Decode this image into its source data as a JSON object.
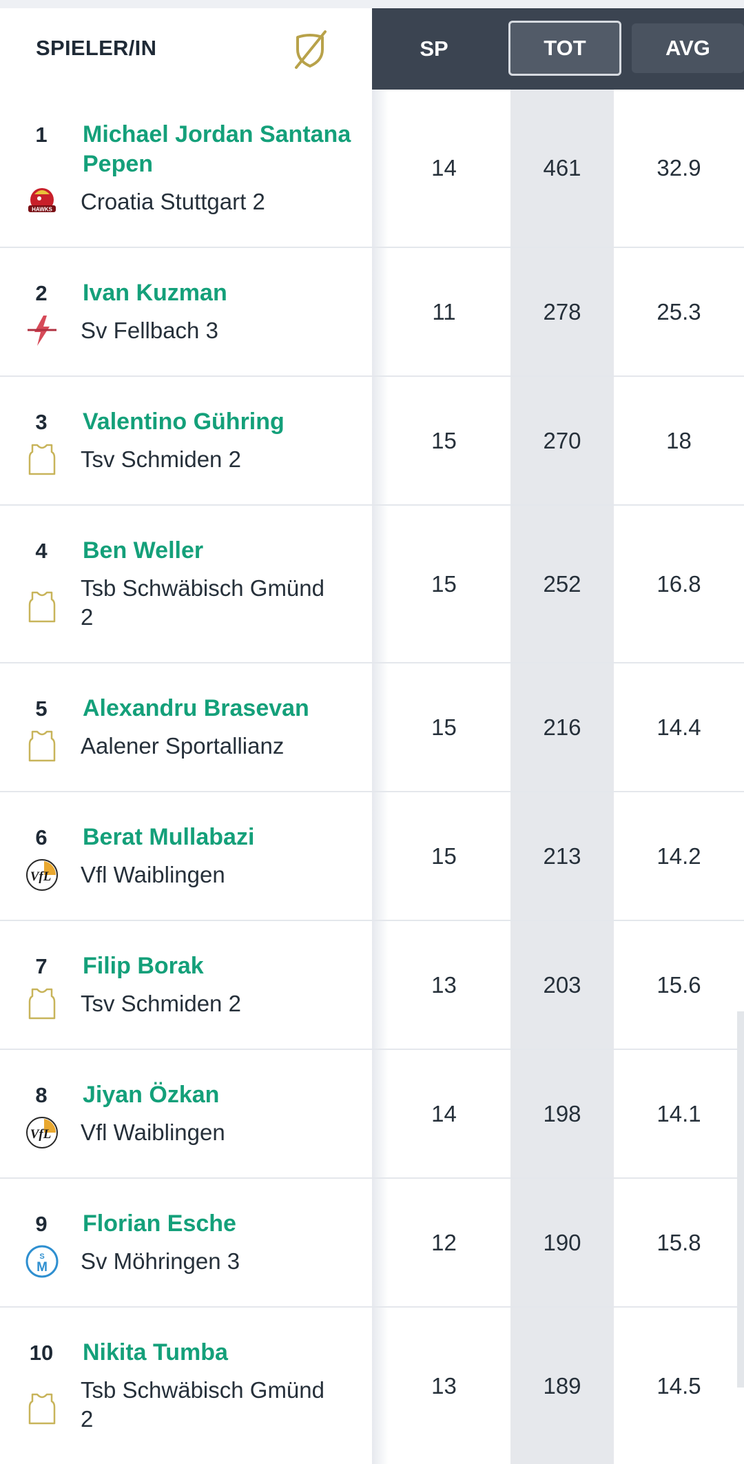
{
  "header": {
    "player_label": "SPIELER/IN",
    "filter_icon": "slashed-shield-icon",
    "columns": {
      "sp": "SP",
      "tot": "TOT",
      "avg": "AVG"
    },
    "active_column": "TOT"
  },
  "colors": {
    "player_name": "#14a07a",
    "header_dark": "#3b4451",
    "tot_column_bg": "#e6e8ec"
  },
  "rows": [
    {
      "rank": "1",
      "name_lines": [
        "Michael Jordan Santana",
        "Pepen"
      ],
      "team_lines": [
        "Croatia Stuttgart 2"
      ],
      "logo": "hawks-logo-icon",
      "sp": "14",
      "tot": "461",
      "avg": "32.9"
    },
    {
      "rank": "2",
      "name_lines": [
        "Ivan Kuzman"
      ],
      "team_lines": [
        "Sv Fellbach 3"
      ],
      "logo": "lightning-logo-icon",
      "sp": "11",
      "tot": "278",
      "avg": "25.3"
    },
    {
      "rank": "3",
      "name_lines": [
        "Valentino Gühring"
      ],
      "team_lines": [
        "Tsv Schmiden 2"
      ],
      "logo": "jersey-icon",
      "sp": "15",
      "tot": "270",
      "avg": "18"
    },
    {
      "rank": "4",
      "name_lines": [
        "Ben Weller"
      ],
      "team_lines": [
        "Tsb Schwäbisch Gmünd",
        "2"
      ],
      "logo": "jersey-icon",
      "sp": "15",
      "tot": "252",
      "avg": "16.8"
    },
    {
      "rank": "5",
      "name_lines": [
        "Alexandru Brasevan"
      ],
      "team_lines": [
        "Aalener Sportallianz"
      ],
      "logo": "jersey-icon",
      "sp": "15",
      "tot": "216",
      "avg": "14.4"
    },
    {
      "rank": "6",
      "name_lines": [
        "Berat Mullabazi"
      ],
      "team_lines": [
        "Vfl Waiblingen"
      ],
      "logo": "vfl-logo-icon",
      "sp": "15",
      "tot": "213",
      "avg": "14.2"
    },
    {
      "rank": "7",
      "name_lines": [
        "Filip Borak"
      ],
      "team_lines": [
        "Tsv Schmiden 2"
      ],
      "logo": "jersey-icon",
      "sp": "13",
      "tot": "203",
      "avg": "15.6"
    },
    {
      "rank": "8",
      "name_lines": [
        "Jiyan Özkan"
      ],
      "team_lines": [
        "Vfl Waiblingen"
      ],
      "logo": "vfl-logo-icon",
      "sp": "14",
      "tot": "198",
      "avg": "14.1"
    },
    {
      "rank": "9",
      "name_lines": [
        "Florian Esche"
      ],
      "team_lines": [
        "Sv Möhringen 3"
      ],
      "logo": "svm-logo-icon",
      "sp": "12",
      "tot": "190",
      "avg": "15.8"
    },
    {
      "rank": "10",
      "name_lines": [
        "Nikita Tumba"
      ],
      "team_lines": [
        "Tsb Schwäbisch Gmünd",
        "2"
      ],
      "logo": "jersey-icon",
      "sp": "13",
      "tot": "189",
      "avg": "14.5"
    }
  ]
}
